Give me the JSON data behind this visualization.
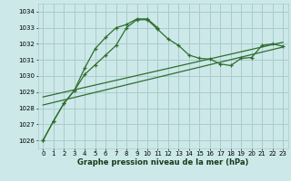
{
  "title": "Graphe pression niveau de la mer (hPa)",
  "bg_color": "#cce8e8",
  "grid_color": "#aacccc",
  "line_color": "#2d6e2d",
  "xlim": [
    -0.5,
    23.5
  ],
  "ylim": [
    1025.5,
    1034.5
  ],
  "yticks": [
    1026,
    1027,
    1028,
    1029,
    1030,
    1031,
    1032,
    1033,
    1034
  ],
  "xticks": [
    0,
    1,
    2,
    3,
    4,
    5,
    6,
    7,
    8,
    9,
    10,
    11,
    12,
    13,
    14,
    15,
    16,
    17,
    18,
    19,
    20,
    21,
    22,
    23
  ],
  "series1_x": [
    0,
    1,
    2,
    3,
    4,
    5,
    6,
    7,
    8,
    9,
    10,
    11,
    12,
    13,
    14,
    15,
    16,
    17,
    18,
    19,
    20,
    21,
    22,
    23
  ],
  "series1_y": [
    1026.0,
    1027.2,
    1028.3,
    1029.1,
    1030.1,
    1030.7,
    1031.3,
    1031.9,
    1033.0,
    1033.5,
    1033.5,
    1032.9,
    1032.3,
    1031.9,
    1031.3,
    1031.1,
    1031.05,
    1030.75,
    1030.65,
    1031.1,
    1031.15,
    1031.9,
    1032.0,
    1031.85
  ],
  "series2_x": [
    0,
    1,
    2,
    3,
    4,
    5,
    6,
    7,
    8,
    9,
    10,
    11
  ],
  "series2_y": [
    1026.0,
    1027.2,
    1028.3,
    1029.1,
    1030.5,
    1031.7,
    1032.4,
    1033.0,
    1033.2,
    1033.55,
    1033.55,
    1033.0
  ],
  "trend1_x": [
    0,
    23
  ],
  "trend1_y": [
    1028.2,
    1031.8
  ],
  "trend2_x": [
    0,
    23
  ],
  "trend2_y": [
    1028.7,
    1032.1
  ],
  "xlabel_fontsize": 6.0,
  "tick_fontsize": 5.0
}
